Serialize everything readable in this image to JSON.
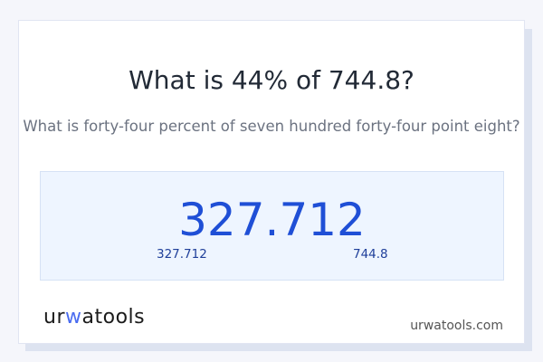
{
  "title": "What is 44% of 744.8?",
  "subtitle": "What is forty-four percent of seven hundred forty-four point eight?",
  "result": "327.712",
  "result_left": "327.712",
  "result_right": "744.8",
  "logo_text": "urwatools",
  "site": "urwatools.com",
  "colors": {
    "accent": "#1f4fd6",
    "box_bg": "#eef5ff"
  }
}
